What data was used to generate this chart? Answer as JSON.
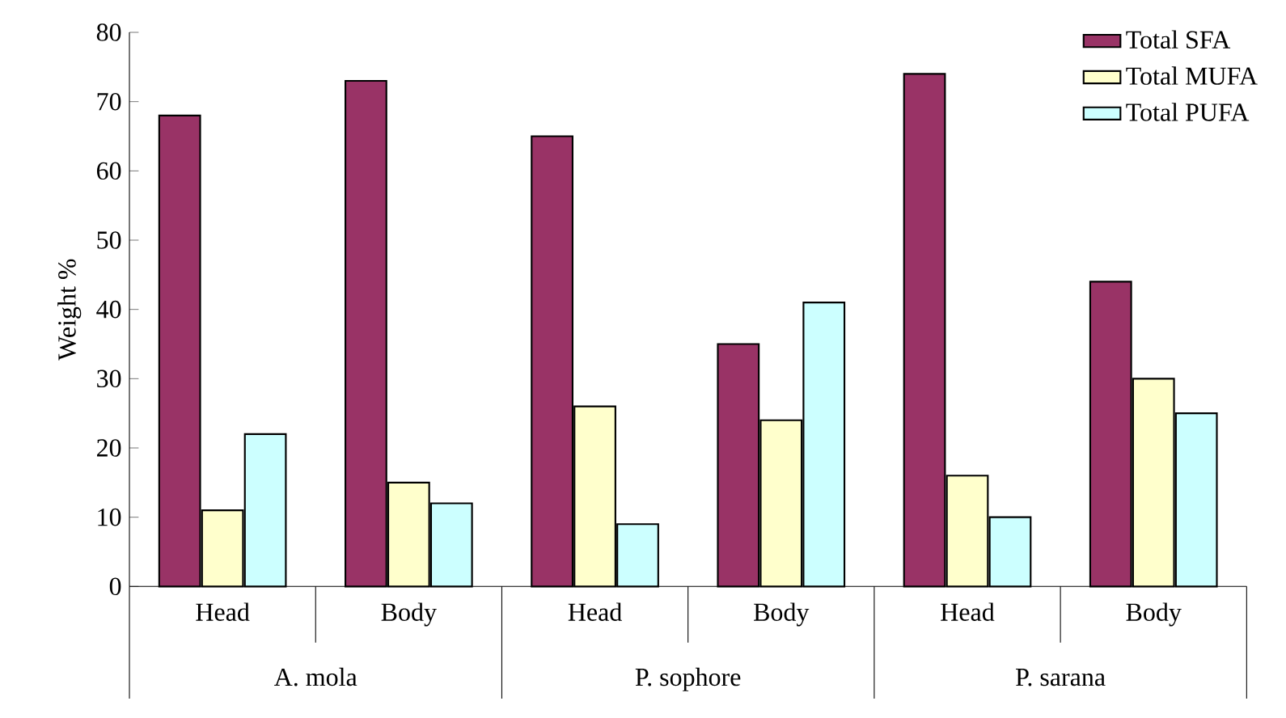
{
  "chart_data": {
    "type": "bar",
    "ylabel": "Weight %",
    "categories": [
      "Head",
      "Body",
      "Head",
      "Body",
      "Head",
      "Body"
    ],
    "annotations": [
      "A. mola",
      "P. sophore",
      "P. sarana"
    ],
    "series": [
      {
        "name": "Total SFA",
        "color": "#993366",
        "values": [
          68,
          73,
          65,
          35,
          74,
          44
        ]
      },
      {
        "name": "Total MUFA",
        "color": "#ffffcc",
        "values": [
          11,
          15,
          26,
          24,
          16,
          30
        ]
      },
      {
        "name": "Total PUFA",
        "color": "#ccffff",
        "values": [
          22,
          12,
          9,
          41,
          10,
          25
        ]
      }
    ],
    "ylim": [
      0,
      80
    ],
    "yticks": [
      0,
      10,
      20,
      30,
      40,
      50,
      60,
      70,
      80
    ],
    "legend": "top right"
  }
}
